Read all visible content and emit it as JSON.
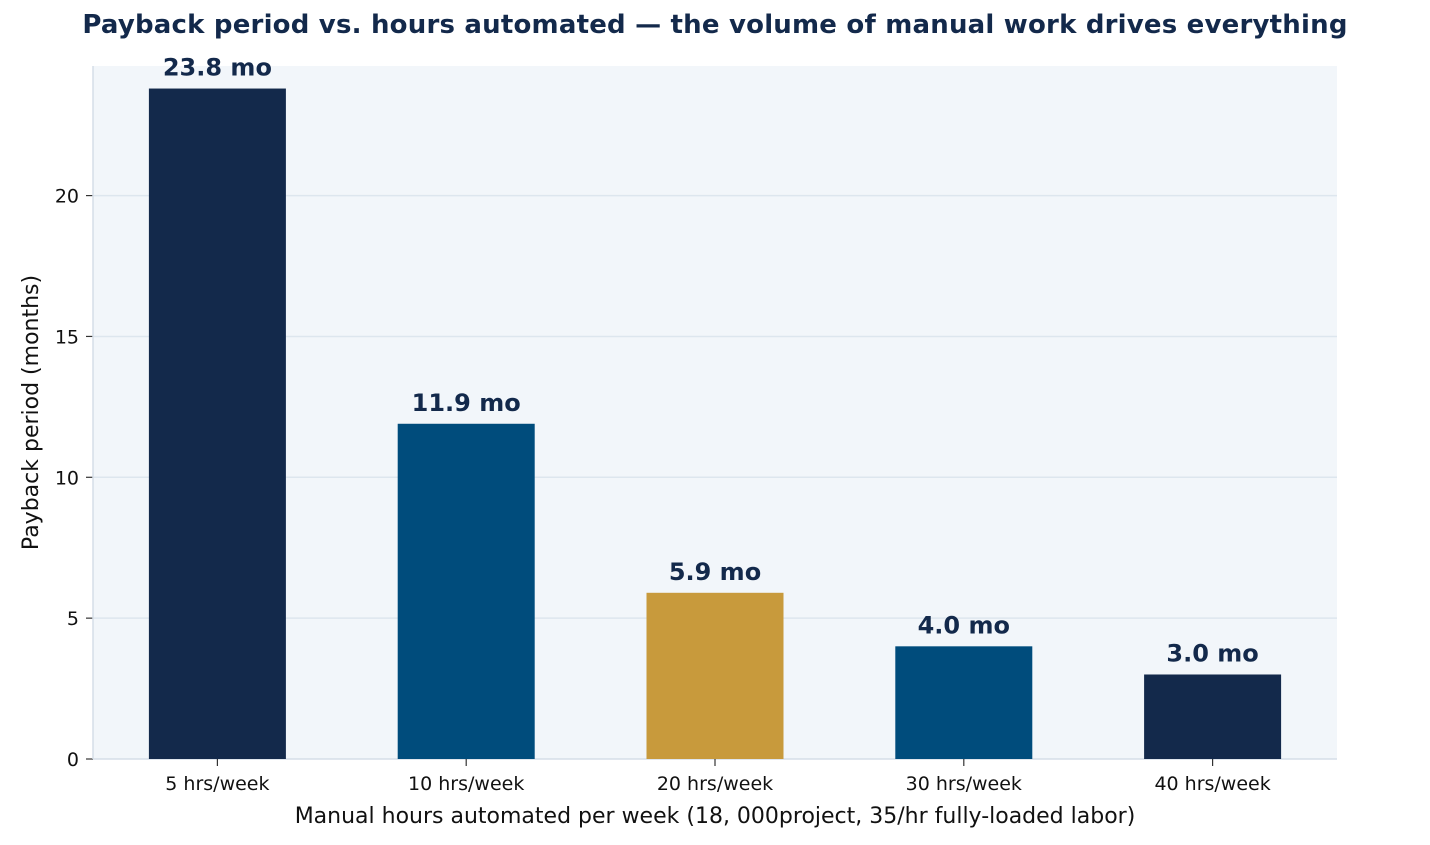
{
  "chart_data": {
    "type": "bar",
    "title": "Payback period vs. hours automated — the volume of manual work drives everything",
    "xlabel": "Manual hours automated per week (18, 000project, 35/hr fully-loaded labor)",
    "ylabel": "Payback period (months)",
    "categories": [
      "5 hrs/week",
      "10 hrs/week",
      "20 hrs/week",
      "30 hrs/week",
      "40 hrs/week"
    ],
    "values": [
      23.8,
      11.9,
      5.9,
      4.0,
      3.0
    ],
    "value_labels": [
      "23.8 mo",
      "11.9 mo",
      "5.9 mo",
      "4.0 mo",
      "3.0 mo"
    ],
    "bar_colors": [
      "#13294b",
      "#004c7c",
      "#c89a3c",
      "#004c7c",
      "#13294b"
    ],
    "ylim": [
      0,
      24.6
    ],
    "yticks": [
      0,
      5,
      10,
      15,
      20
    ],
    "grid": "horizontal",
    "legend": "none",
    "plot_background": "#f2f6fa",
    "grid_color": "#dde6ee"
  }
}
